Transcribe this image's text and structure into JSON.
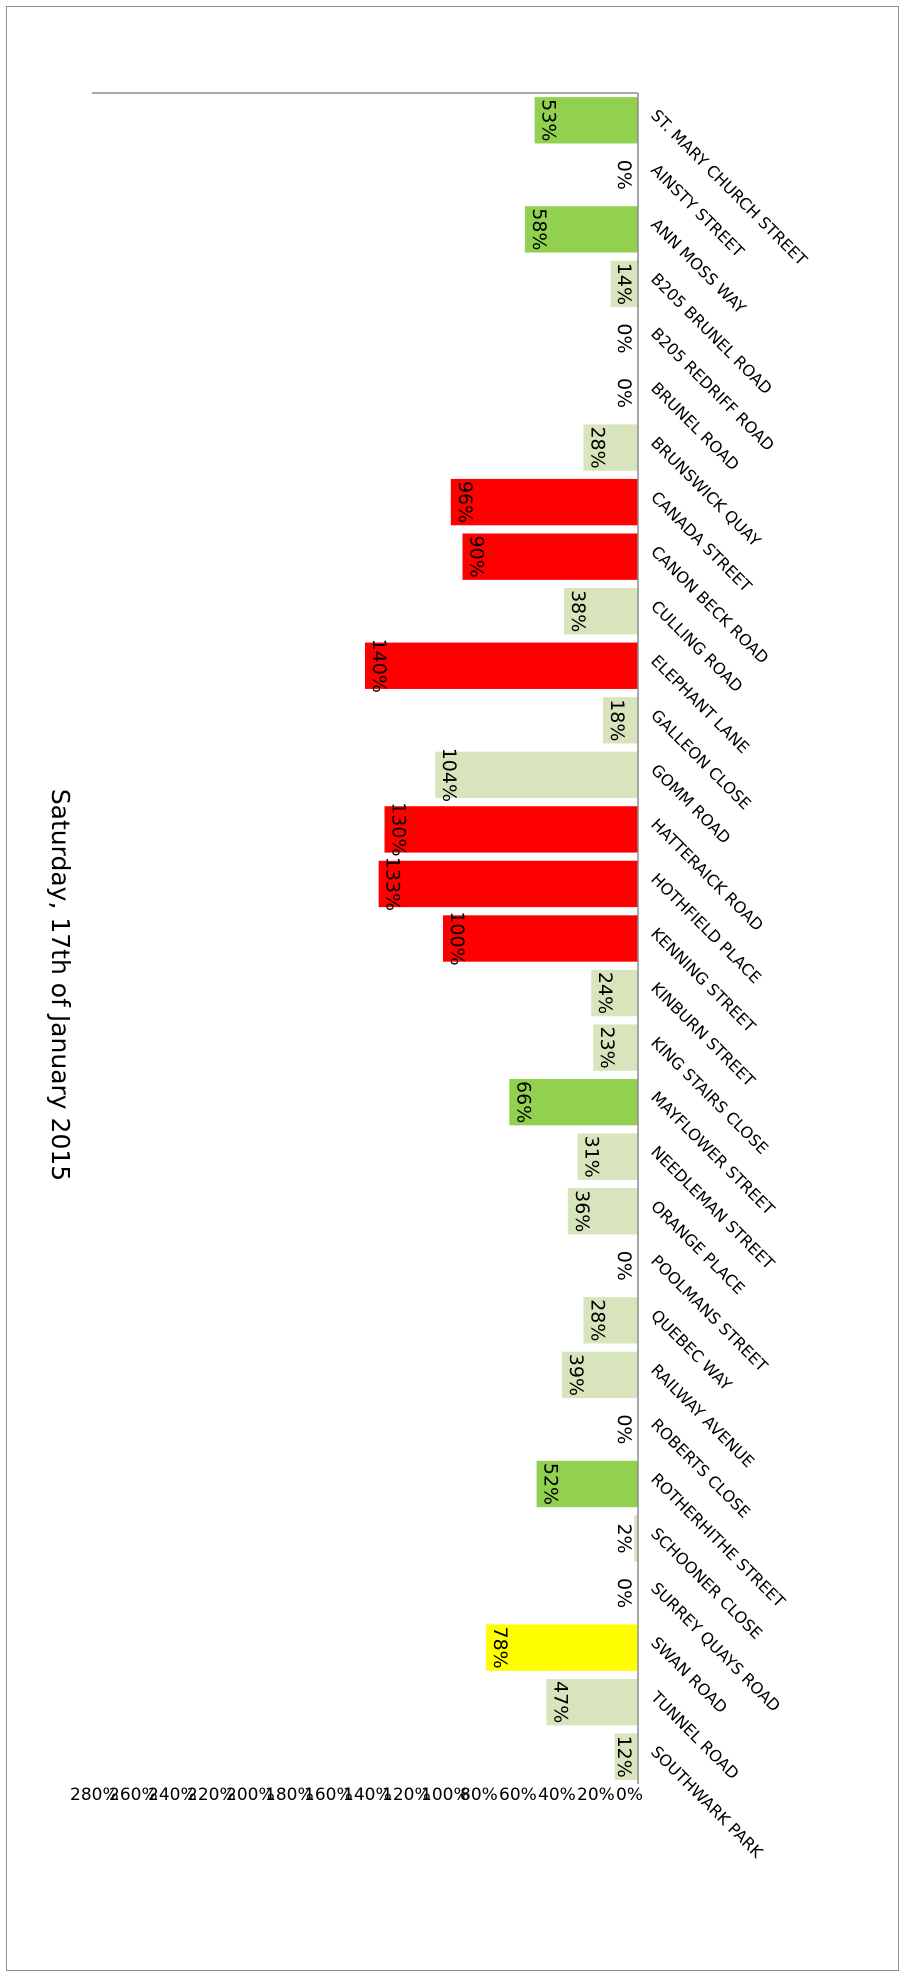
{
  "chart_data": {
    "type": "bar",
    "orientation": "rotated-90-clockwise",
    "title": "Saturday, 17th of January 2015",
    "xlabel": "",
    "ylabel": "",
    "ylim": [
      0,
      280
    ],
    "yticks": [
      "0%",
      "20%",
      "40%",
      "60%",
      "80%",
      "100%",
      "120%",
      "140%",
      "160%",
      "180%",
      "200%",
      "220%",
      "240%",
      "260%",
      "280%"
    ],
    "grid": false,
    "legend": "none",
    "categories": [
      "ST. MARY CHURCH STREET",
      "AINSTY STREET",
      "ANN MOSS WAY",
      "B205 BRUNEL ROAD",
      "B205 REDRIFF ROAD",
      "BRUNEL ROAD",
      "BRUNSWICK QUAY",
      "CANADA STREET",
      "CANON BECK ROAD",
      "CULLING ROAD",
      "ELEPHANT LANE",
      "GALLEON CLOSE",
      "GOMM ROAD",
      "HATTERAICK ROAD",
      "HOTHFIELD PLACE",
      "KENNING STREET",
      "KINBURN STREET",
      "KING STAIRS CLOSE",
      "MAYFLOWER STREET",
      "NEEDLEMAN STREET",
      "ORANGE PLACE",
      "POOLMANS STREET",
      "QUEBEC WAY",
      "RAILWAY AVENUE",
      "ROBERTS CLOSE",
      "ROTHERHITHE STREET",
      "SCHOONER CLOSE",
      "SURREY QUAYS ROAD",
      "SWAN ROAD",
      "TUNNEL ROAD",
      "SOUTHWARK PARK"
    ],
    "values": [
      53,
      0,
      58,
      14,
      0,
      0,
      28,
      96,
      90,
      38,
      140,
      18,
      104,
      130,
      133,
      100,
      24,
      23,
      66,
      31,
      36,
      0,
      28,
      39,
      0,
      52,
      2,
      0,
      78,
      47,
      12
    ],
    "labels": [
      "53%",
      "0%",
      "58%",
      "14%",
      "0%",
      "0%",
      "28%",
      "96%",
      "90%",
      "38%",
      "140%",
      "18%",
      "104%",
      "130%",
      "133%",
      "100%",
      "24%",
      "23%",
      "66%",
      "31%",
      "36%",
      "0%",
      "28%",
      "39%",
      "0%",
      "52%",
      "2%",
      "0%",
      "78%",
      "47%",
      "12%"
    ],
    "bar_colors": [
      "#92d050",
      "#d8e4bc",
      "#92d050",
      "#d8e4bc",
      "#d8e4bc",
      "#d8e4bc",
      "#d8e4bc",
      "#ff0000",
      "#ff0000",
      "#d8e4bc",
      "#ff0000",
      "#d8e4bc",
      "#d8e4bc",
      "#ff0000",
      "#ff0000",
      "#ff0000",
      "#d8e4bc",
      "#d8e4bc",
      "#92d050",
      "#d8e4bc",
      "#d8e4bc",
      "#d8e4bc",
      "#d8e4bc",
      "#d8e4bc",
      "#d8e4bc",
      "#92d050",
      "#d8e4bc",
      "#d8e4bc",
      "#ffff00",
      "#d8e4bc",
      "#d8e4bc"
    ],
    "colors": {
      "axis": "#8c8c8c",
      "text": "#000000"
    }
  }
}
